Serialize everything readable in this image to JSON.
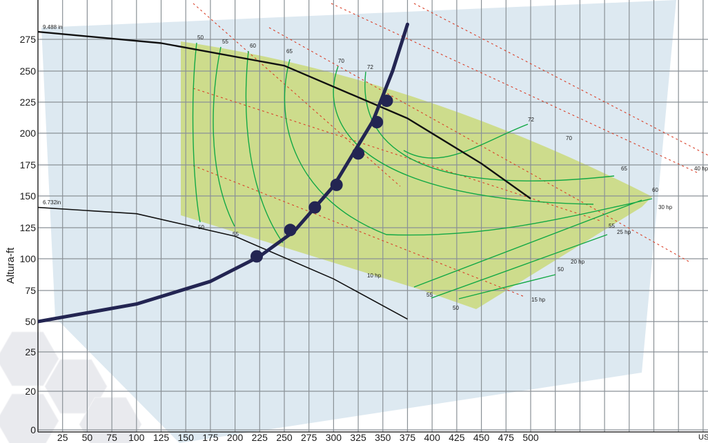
{
  "colors": {
    "grid": "#8a9196",
    "background_panel": "#dde9f1",
    "region_fill": "#cddc8c",
    "efficiency_line": "#12a845",
    "power_line": "#d9412a",
    "system_curve": "#232552",
    "impeller_curve": "#111111"
  },
  "chart_data": {
    "type": "line",
    "title": "",
    "xlabel": "US gpm",
    "ylabel": "Altura-ft",
    "x_ticks": [
      "25",
      "50",
      "75",
      "100",
      "125",
      "150",
      "175",
      "200",
      "225",
      "250",
      "275",
      "300",
      "325",
      "350",
      "375",
      "400",
      "425",
      "450",
      "475",
      "500"
    ],
    "y_ticks": [
      "0",
      "20",
      "25",
      "50",
      "75",
      "100",
      "125",
      "150",
      "175",
      "200",
      "225",
      "250",
      "275"
    ],
    "impeller_curves": [
      {
        "name": "9.488 in",
        "points": [
          [
            0,
            281
          ],
          [
            125,
            272
          ],
          [
            250,
            254
          ],
          [
            375,
            212
          ],
          [
            450,
            176
          ],
          [
            500,
            148
          ]
        ]
      },
      {
        "name": "6.732in",
        "points": [
          [
            0,
            141
          ],
          [
            100,
            136
          ],
          [
            200,
            118
          ],
          [
            300,
            84
          ],
          [
            375,
            52
          ]
        ]
      }
    ],
    "system_curve": {
      "points": [
        [
          0,
          50
        ],
        [
          100,
          64
        ],
        [
          175,
          82
        ],
        [
          225,
          102
        ],
        [
          260,
          122
        ],
        [
          300,
          158
        ],
        [
          340,
          210
        ],
        [
          360,
          250
        ],
        [
          375,
          287
        ]
      ],
      "markers": [
        [
          222,
          102
        ],
        [
          256,
          123
        ],
        [
          281,
          141
        ],
        [
          303,
          159
        ],
        [
          325,
          184
        ],
        [
          344,
          209
        ],
        [
          354,
          226
        ]
      ]
    },
    "efficiency_labels": {
      "top": [
        "50",
        "55",
        "60",
        "65",
        "70",
        "72"
      ],
      "right": [
        "72",
        "70",
        "65",
        "60"
      ],
      "lower": [
        "50",
        "55",
        "55",
        "50",
        "55",
        "50"
      ]
    },
    "power_lines": [
      "10 hp",
      "15 hp",
      "20 hp",
      "25 hp",
      "30 hp",
      "40 hp"
    ]
  }
}
